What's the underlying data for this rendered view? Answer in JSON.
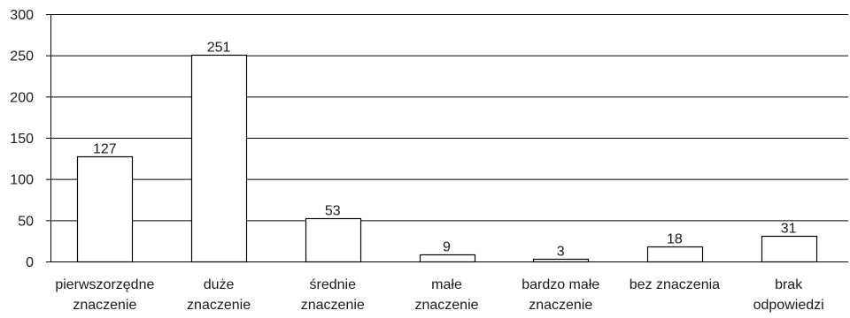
{
  "chart_data": {
    "type": "bar",
    "title": "",
    "xlabel": "",
    "ylabel": "",
    "ylim": [
      0,
      300
    ],
    "yticks": [
      0,
      50,
      100,
      150,
      200,
      250,
      300
    ],
    "grid": true,
    "categories": [
      [
        "pierwszorzędne",
        "znaczenie"
      ],
      [
        "duże",
        "znaczenie"
      ],
      [
        "średnie",
        "znaczenie"
      ],
      [
        "małe",
        "znaczenie"
      ],
      [
        "bardzo małe",
        "znaczenie"
      ],
      [
        "bez znaczenia"
      ],
      [
        "brak",
        "odpowiedzi"
      ]
    ],
    "values": [
      127,
      251,
      53,
      9,
      3,
      18,
      31
    ],
    "data_labels": [
      "127",
      "251",
      "53",
      "9",
      "3",
      "18",
      "31"
    ],
    "colors": {
      "bar_fill": "#ffffff",
      "bar_stroke": "#000000",
      "grid": "#000000",
      "axis": "#000000"
    }
  }
}
